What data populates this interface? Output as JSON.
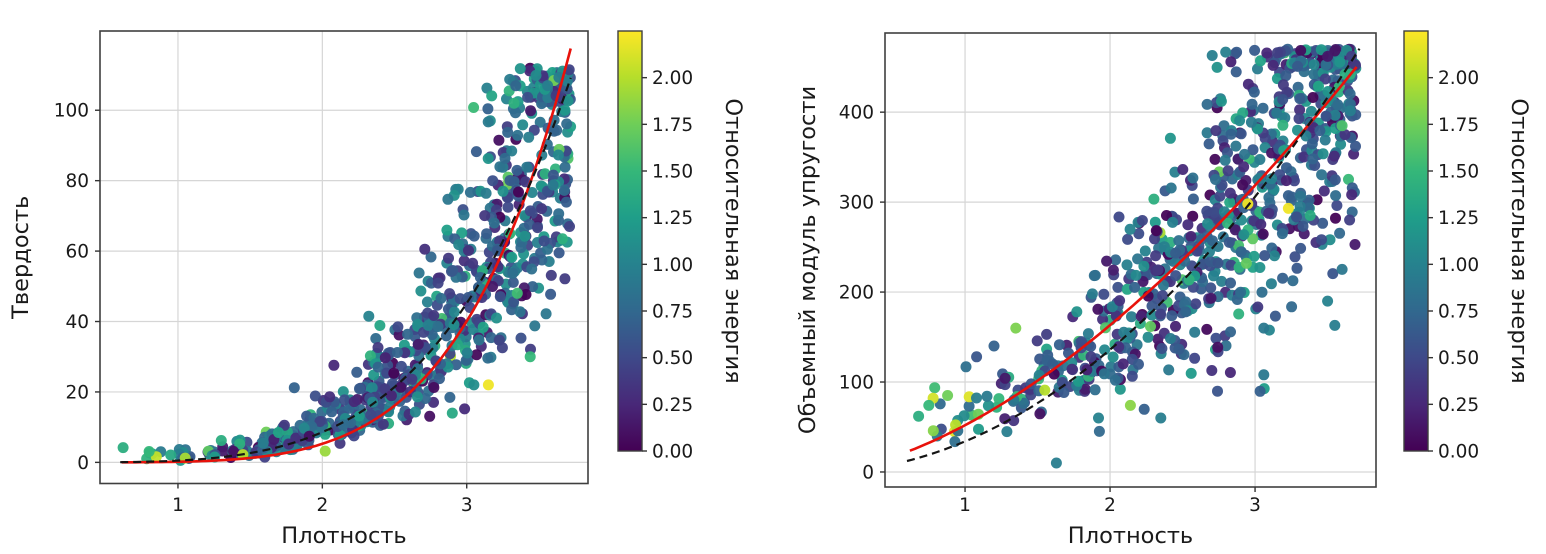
{
  "figure": {
    "background": "#ffffff",
    "grid_color": "#d6d6d6",
    "spine_color": "#3f3f3f",
    "tick_color": "#333333",
    "text_color": "#1a1a1a",
    "viridis_stops": [
      "#440154",
      "#482878",
      "#3e4989",
      "#31688e",
      "#26828e",
      "#1f9e89",
      "#35b779",
      "#6ece58",
      "#b5de2b",
      "#fde725"
    ]
  },
  "chart_data": [
    {
      "type": "scatter",
      "title": "",
      "xlabel": "Плотность",
      "ylabel": "Твердость",
      "xlim": [
        0.46,
        3.84
      ],
      "ylim": [
        -6,
        122.5
      ],
      "xtick_values": [
        1,
        2,
        3
      ],
      "xtick_labels": [
        "1",
        "2",
        "3"
      ],
      "ytick_values": [
        0,
        20,
        40,
        60,
        80,
        100
      ],
      "ytick_labels": [
        "0",
        "20",
        "40",
        "60",
        "80",
        "100"
      ],
      "grid": true,
      "colorbar": {
        "label": "Относительная энергия",
        "range": [
          0,
          2.25
        ],
        "tick_values": [
          0,
          0.25,
          0.5,
          0.75,
          1.0,
          1.25,
          1.5,
          1.75,
          2.0
        ],
        "tick_labels": [
          "0.00",
          "0.25",
          "0.50",
          "0.75",
          "1.00",
          "1.25",
          "1.50",
          "1.75",
          "2.00"
        ]
      },
      "fit_curves": [
        {
          "name": "fit-solid-red",
          "color": "#e8120b",
          "dash": "",
          "width": 2.6,
          "power_a": 0.165,
          "power_b": 5.0,
          "x_start": 0.61,
          "x_end": 3.72
        },
        {
          "name": "fit-dashed-black",
          "color": "#151515",
          "dash": "8,5",
          "width": 2.2,
          "power_a": 0.5,
          "power_b": 4.1,
          "x_start": 0.6,
          "x_end": 3.72
        }
      ],
      "scatter": {
        "marker_radius_px": 5.5,
        "opacity": 0.95,
        "n_points": 790,
        "seed": 20240601,
        "x_min": 0.6,
        "x_max": 3.72,
        "x_pow": 0.45,
        "base_a": 0.5,
        "base_b": 4.1,
        "log_sigma": 0.33,
        "add_sigma": 2.2,
        "add_abs": true,
        "lowx_boost_below": 0,
        "lowx_boost_scale": 0,
        "low_tail_fraction": 0.045,
        "low_tail_min": 0.35,
        "low_tail_max": 0.75,
        "low_tail_xmin": 2.4,
        "y_min": 0.2,
        "y_max": 112,
        "ceil_jitter": 10,
        "color_mean": 0.7,
        "color_sigma": 0.38,
        "lowx_color_below": 1.25,
        "lowx_color_max": 0.85,
        "outlier_points": [
          [
            3.15,
            22,
            2.2
          ],
          [
            0.85,
            1.6,
            2.05
          ],
          [
            1.05,
            1.2,
            1.95
          ],
          [
            1.45,
            2.2,
            2.0
          ],
          [
            2.02,
            3.2,
            1.9
          ],
          [
            3.35,
            48,
            1.55
          ],
          [
            3.44,
            30,
            1.5
          ],
          [
            0.62,
            4.2,
            1.4
          ],
          [
            0.8,
            3.1,
            1.5
          ],
          [
            0.95,
            2.1,
            1.35
          ],
          [
            1.3,
            6.2,
            1.4
          ],
          [
            3.68,
            100,
            1.2
          ],
          [
            3.56,
            107,
            0.95
          ],
          [
            2.62,
            23.6,
            0.4
          ],
          [
            3.18,
            80,
            0.55
          ],
          [
            3.05,
            22,
            1.1
          ],
          [
            2.9,
            14,
            1.35
          ],
          [
            3.3,
            65,
            1.5
          ]
        ]
      }
    },
    {
      "type": "scatter",
      "title": "",
      "xlabel": "Плотность",
      "ylabel": "Объемный модуль упругости",
      "xlim": [
        0.448,
        3.834
      ],
      "ylim": [
        -16.7,
        488
      ],
      "xtick_values": [
        1,
        2,
        3
      ],
      "xtick_labels": [
        "1",
        "2",
        "3"
      ],
      "ytick_values": [
        0,
        100,
        200,
        300,
        400
      ],
      "ytick_labels": [
        "0",
        "100",
        "200",
        "300",
        "400"
      ],
      "grid": true,
      "colorbar": {
        "label": "Относительная энергия",
        "range": [
          0,
          2.25
        ],
        "tick_values": [
          0,
          0.25,
          0.5,
          0.75,
          1.0,
          1.25,
          1.5,
          1.75,
          2.0
        ],
        "tick_labels": [
          "0.00",
          "0.25",
          "0.50",
          "0.75",
          "1.00",
          "1.25",
          "1.50",
          "1.75",
          "2.00"
        ]
      },
      "fit_curves": [
        {
          "name": "fit-solid-red",
          "color": "#e8120b",
          "dash": "",
          "width": 2.6,
          "power_a": 52,
          "power_b": 1.65,
          "x_start": 0.62,
          "x_end": 3.7
        },
        {
          "name": "fit-dashed-black",
          "color": "#151515",
          "dash": "8,5",
          "width": 2.2,
          "power_a": 34,
          "power_b": 2.0,
          "x_start": 0.6,
          "x_end": 3.72
        }
      ],
      "scatter": {
        "marker_radius_px": 5.5,
        "opacity": 0.95,
        "n_points": 790,
        "seed": 987654,
        "x_min": 0.6,
        "x_max": 3.7,
        "x_pow": 0.45,
        "base_a": 34,
        "base_b": 2.0,
        "log_sigma": 0.26,
        "add_sigma": 28,
        "add_abs": true,
        "lowx_boost_below": 1.3,
        "lowx_boost_scale": 55,
        "low_tail_fraction": 0.06,
        "low_tail_min": 0.3,
        "low_tail_max": 0.72,
        "low_tail_xmin": 1.8,
        "y_min": 8,
        "y_max": 470,
        "ceil_jitter": 22,
        "color_mean": 0.7,
        "color_sigma": 0.38,
        "lowx_color_below": 1.25,
        "lowx_color_max": 0.85,
        "outlier_points": [
          [
            1.63,
            10,
            0.95
          ],
          [
            1.92,
            60,
            1.0
          ],
          [
            3.23,
            293,
            2.2
          ],
          [
            3.5,
            190,
            1.0
          ],
          [
            3.55,
            163,
            0.95
          ],
          [
            0.78,
            82,
            2.1
          ],
          [
            0.88,
            85,
            1.75
          ],
          [
            0.68,
            62,
            1.4
          ],
          [
            0.75,
            74,
            1.5
          ],
          [
            3.6,
            385,
            1.6
          ],
          [
            3.58,
            428,
            1.5
          ],
          [
            3.62,
            442,
            1.4
          ],
          [
            3.06,
            160,
            0.9
          ],
          [
            3.06,
            108,
            0.9
          ],
          [
            2.35,
            60,
            0.95
          ],
          [
            1.55,
            91,
            2.0
          ],
          [
            2.14,
            74,
            1.85
          ],
          [
            1.08,
            128,
            0.6
          ],
          [
            1.2,
            140,
            0.7
          ],
          [
            1.35,
            160,
            1.8
          ],
          [
            3.55,
            468,
            0.12
          ],
          [
            3.5,
            462,
            0.15
          ],
          [
            2.94,
            232,
            1.7
          ],
          [
            2.95,
            298,
            2.2
          ]
        ]
      }
    }
  ]
}
